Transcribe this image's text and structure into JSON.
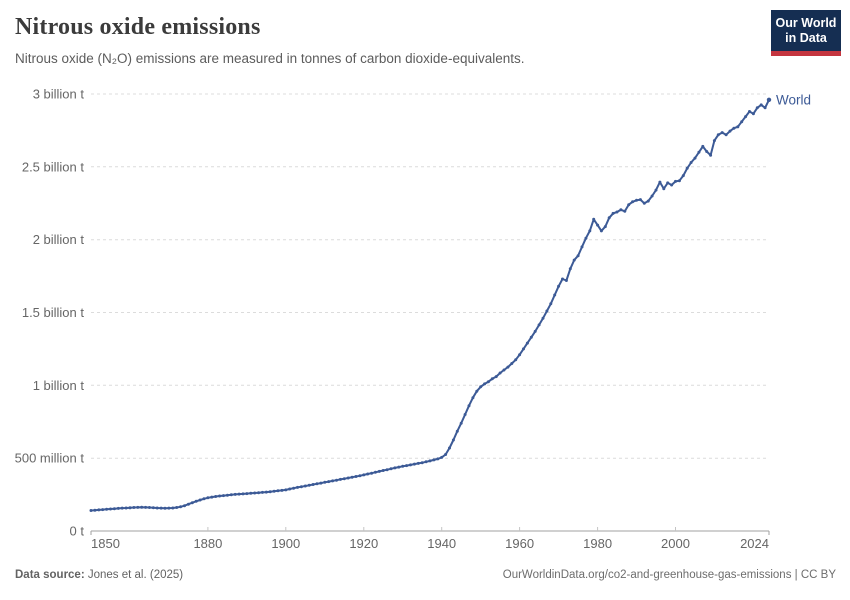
{
  "header": {
    "title": "Nitrous oxide emissions",
    "subtitle": "Nitrous oxide (N₂O) emissions are measured in tonnes of carbon dioxide-equivalents.",
    "logo": {
      "line1": "Our World",
      "line2": "in Data"
    }
  },
  "footer": {
    "source_label": "Data source:",
    "source_value": " Jones et al. (2025)",
    "link_text": "OurWorldinData.org/co2-and-greenhouse-gas-emissions",
    "license_text": " | CC BY"
  },
  "colors": {
    "series_blue": "#3c5a96",
    "grid": "#dcdcdc",
    "axis": "#a0a0a0",
    "tick_text": "#666666",
    "title_text": "#3b3b3b",
    "subtitle_text": "#5c5c5c",
    "logo_bg": "#152e52",
    "logo_accent": "#c4353f"
  },
  "chart_data": {
    "type": "line",
    "title": "Nitrous oxide emissions",
    "xlabel": "",
    "ylabel": "",
    "unit": "tonnes of carbon dioxide-equivalents",
    "values_unit": "million tonnes CO₂-equivalents",
    "grid": "horizontal dashed",
    "legend": "series label at end of line",
    "xlim": [
      1850,
      2024
    ],
    "ylim_million_t": [
      0,
      3000
    ],
    "x_ticks": [
      {
        "year": 1850,
        "label": "1850"
      },
      {
        "year": 1880,
        "label": "1880"
      },
      {
        "year": 1900,
        "label": "1900"
      },
      {
        "year": 1920,
        "label": "1920"
      },
      {
        "year": 1940,
        "label": "1940"
      },
      {
        "year": 1960,
        "label": "1960"
      },
      {
        "year": 1980,
        "label": "1980"
      },
      {
        "year": 2000,
        "label": "2000"
      },
      {
        "year": 2024,
        "label": "2024"
      }
    ],
    "y_ticks": [
      {
        "value": 0,
        "label": "0 t"
      },
      {
        "value": 500,
        "label": "500 million t"
      },
      {
        "value": 1000,
        "label": "1 billion t"
      },
      {
        "value": 1500,
        "label": "1.5 billion t"
      },
      {
        "value": 2000,
        "label": "2 billion t"
      },
      {
        "value": 2500,
        "label": "2.5 billion t"
      },
      {
        "value": 3000,
        "label": "3 billion t"
      }
    ],
    "series": [
      {
        "name": "World",
        "color": "#3c5a96",
        "start_year": 1850,
        "end_year": 2024,
        "values_million_t": [
          141,
          143,
          145,
          147,
          149,
          151,
          153,
          155,
          157,
          158,
          159,
          161,
          162,
          163,
          162,
          161,
          160,
          158,
          157,
          156,
          157,
          158,
          161,
          166,
          174,
          184,
          194,
          204,
          213,
          221,
          228,
          233,
          237,
          240,
          243,
          246,
          249,
          251,
          253,
          255,
          257,
          259,
          261,
          263,
          265,
          267,
          270,
          273,
          276,
          279,
          282,
          288,
          294,
          299,
          304,
          309,
          314,
          319,
          324,
          329,
          334,
          339,
          344,
          349,
          354,
          359,
          364,
          369,
          374,
          379,
          385,
          391,
          397,
          403,
          409,
          415,
          421,
          427,
          433,
          439,
          444,
          449,
          454,
          459,
          464,
          469,
          475,
          481,
          488,
          495,
          505,
          525,
          570,
          625,
          685,
          740,
          800,
          860,
          915,
          960,
          990,
          1010,
          1025,
          1045,
          1060,
          1085,
          1105,
          1125,
          1150,
          1175,
          1210,
          1250,
          1290,
          1330,
          1370,
          1415,
          1460,
          1510,
          1560,
          1620,
          1680,
          1730,
          1720,
          1800,
          1860,
          1890,
          1950,
          2010,
          2060,
          2140,
          2100,
          2060,
          2090,
          2150,
          2180,
          2190,
          2205,
          2195,
          2240,
          2260,
          2270,
          2275,
          2250,
          2265,
          2300,
          2340,
          2395,
          2350,
          2390,
          2375,
          2400,
          2405,
          2440,
          2490,
          2530,
          2560,
          2600,
          2640,
          2605,
          2580,
          2680,
          2720,
          2735,
          2720,
          2745,
          2765,
          2775,
          2810,
          2845,
          2880,
          2865,
          2905,
          2925,
          2905,
          2960
        ]
      }
    ]
  }
}
